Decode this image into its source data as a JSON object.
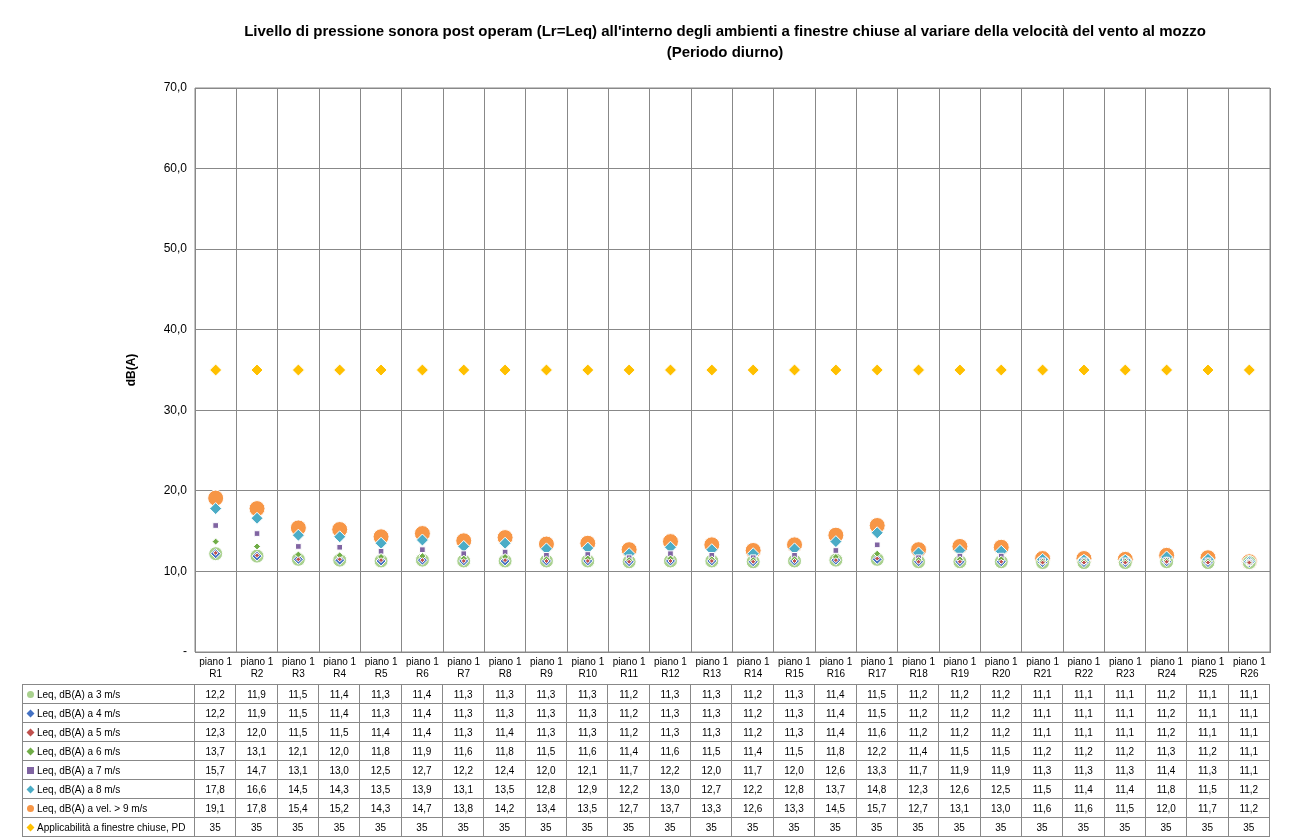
{
  "chart_data": {
    "type": "scatter",
    "title": "Livello di pressione sonora post operam (Lr=Leq) all'interno degli ambienti a finestre chiuse al variare della velocità del vento al mozzo (Periodo diurno)",
    "ylabel": "dB(A)",
    "categories": [
      "piano 1\nR1",
      "piano 1\nR2",
      "piano 1\nR3",
      "piano 1\nR4",
      "piano 1\nR5",
      "piano 1\nR6",
      "piano 1\nR7",
      "piano 1\nR8",
      "piano 1\nR9",
      "piano 1\nR10",
      "piano 1\nR11",
      "piano 1\nR12",
      "piano 1\nR13",
      "piano 1\nR14",
      "piano 1\nR15",
      "piano 1\nR16",
      "piano 1\nR17",
      "piano 1\nR18",
      "piano 1\nR19",
      "piano 1\nR20",
      "piano 1\nR21",
      "piano 1\nR22",
      "piano 1\nR23",
      "piano 1\nR24",
      "piano 1\nR25",
      "piano 1\nR26"
    ],
    "ylim": [
      0,
      70
    ],
    "yticks": [
      {
        "value": 0,
        "label": "-"
      },
      {
        "value": 10,
        "label": "10,0"
      },
      {
        "value": 20,
        "label": "20,0"
      },
      {
        "value": 30,
        "label": "30,0"
      },
      {
        "value": 40,
        "label": "40,0"
      },
      {
        "value": 50,
        "label": "50,0"
      },
      {
        "value": 60,
        "label": "60,0"
      },
      {
        "value": 70,
        "label": "70,0"
      }
    ],
    "grid": true,
    "legend": "bottom",
    "data_labels": true,
    "series": [
      {
        "name": "Leq, dB(A) a 3 m/s",
        "color": "#a9d18e",
        "marker": "circle",
        "values": [
          12.2,
          11.9,
          11.5,
          11.4,
          11.3,
          11.4,
          11.3,
          11.3,
          11.3,
          11.3,
          11.2,
          11.3,
          11.3,
          11.2,
          11.3,
          11.4,
          11.5,
          11.2,
          11.2,
          11.2,
          11.1,
          11.1,
          11.1,
          11.2,
          11.1,
          11.1
        ],
        "value_labels": [
          "12,2",
          "11,9",
          "11,5",
          "11,4",
          "11,3",
          "11,4",
          "11,3",
          "11,3",
          "11,3",
          "11,3",
          "11,2",
          "11,3",
          "11,3",
          "11,2",
          "11,3",
          "11,4",
          "11,5",
          "11,2",
          "11,2",
          "11,2",
          "11,1",
          "11,1",
          "11,1",
          "11,2",
          "11,1",
          "11,1"
        ]
      },
      {
        "name": "Leq, dB(A) a 4 m/s",
        "color": "#4472c4",
        "marker": "diamond",
        "values": [
          12.2,
          11.9,
          11.5,
          11.4,
          11.3,
          11.4,
          11.3,
          11.3,
          11.3,
          11.3,
          11.2,
          11.3,
          11.3,
          11.2,
          11.3,
          11.4,
          11.5,
          11.2,
          11.2,
          11.2,
          11.1,
          11.1,
          11.1,
          11.2,
          11.1,
          11.1
        ],
        "value_labels": [
          "12,2",
          "11,9",
          "11,5",
          "11,4",
          "11,3",
          "11,4",
          "11,3",
          "11,3",
          "11,3",
          "11,3",
          "11,2",
          "11,3",
          "11,3",
          "11,2",
          "11,3",
          "11,4",
          "11,5",
          "11,2",
          "11,2",
          "11,2",
          "11,1",
          "11,1",
          "11,1",
          "11,2",
          "11,1",
          "11,1"
        ]
      },
      {
        "name": "Leq, dB(A) a 5 m/s",
        "color": "#c0504d",
        "marker": "diamond",
        "values": [
          12.3,
          12.0,
          11.5,
          11.5,
          11.4,
          11.4,
          11.3,
          11.4,
          11.3,
          11.3,
          11.2,
          11.3,
          11.3,
          11.2,
          11.3,
          11.4,
          11.6,
          11.2,
          11.2,
          11.2,
          11.1,
          11.1,
          11.1,
          11.2,
          11.1,
          11.1
        ],
        "value_labels": [
          "12,3",
          "12,0",
          "11,5",
          "11,5",
          "11,4",
          "11,4",
          "11,3",
          "11,4",
          "11,3",
          "11,3",
          "11,2",
          "11,3",
          "11,3",
          "11,2",
          "11,3",
          "11,4",
          "11,6",
          "11,2",
          "11,2",
          "11,2",
          "11,1",
          "11,1",
          "11,1",
          "11,2",
          "11,1",
          "11,1"
        ]
      },
      {
        "name": "Leq, dB(A) a 6 m/s",
        "color": "#70ad47",
        "marker": "diamond",
        "values": [
          13.7,
          13.1,
          12.1,
          12.0,
          11.8,
          11.9,
          11.6,
          11.8,
          11.5,
          11.6,
          11.4,
          11.6,
          11.5,
          11.4,
          11.5,
          11.8,
          12.2,
          11.4,
          11.5,
          11.5,
          11.2,
          11.2,
          11.2,
          11.3,
          11.2,
          11.1
        ],
        "value_labels": [
          "13,7",
          "13,1",
          "12,1",
          "12,0",
          "11,8",
          "11,9",
          "11,6",
          "11,8",
          "11,5",
          "11,6",
          "11,4",
          "11,6",
          "11,5",
          "11,4",
          "11,5",
          "11,8",
          "12,2",
          "11,4",
          "11,5",
          "11,5",
          "11,2",
          "11,2",
          "11,2",
          "11,3",
          "11,2",
          "11,1"
        ]
      },
      {
        "name": "Leq, dB(A) a 7 m/s",
        "color": "#8064a2",
        "marker": "square",
        "values": [
          15.7,
          14.7,
          13.1,
          13.0,
          12.5,
          12.7,
          12.2,
          12.4,
          12.0,
          12.1,
          11.7,
          12.2,
          12.0,
          11.7,
          12.0,
          12.6,
          13.3,
          11.7,
          11.9,
          11.9,
          11.3,
          11.3,
          11.3,
          11.4,
          11.3,
          11.1
        ],
        "value_labels": [
          "15,7",
          "14,7",
          "13,1",
          "13,0",
          "12,5",
          "12,7",
          "12,2",
          "12,4",
          "12,0",
          "12,1",
          "11,7",
          "12,2",
          "12,0",
          "11,7",
          "12,0",
          "12,6",
          "13,3",
          "11,7",
          "11,9",
          "11,9",
          "11,3",
          "11,3",
          "11,3",
          "11,4",
          "11,3",
          "11,1"
        ]
      },
      {
        "name": "Leq, dB(A) a 8 m/s",
        "color": "#4bacc6",
        "marker": "diamond",
        "values": [
          17.8,
          16.6,
          14.5,
          14.3,
          13.5,
          13.9,
          13.1,
          13.5,
          12.8,
          12.9,
          12.2,
          13.0,
          12.7,
          12.2,
          12.8,
          13.7,
          14.8,
          12.3,
          12.6,
          12.5,
          11.5,
          11.4,
          11.4,
          11.8,
          11.5,
          11.2
        ],
        "value_labels": [
          "17,8",
          "16,6",
          "14,5",
          "14,3",
          "13,5",
          "13,9",
          "13,1",
          "13,5",
          "12,8",
          "12,9",
          "12,2",
          "13,0",
          "12,7",
          "12,2",
          "12,8",
          "13,7",
          "14,8",
          "12,3",
          "12,6",
          "12,5",
          "11,5",
          "11,4",
          "11,4",
          "11,8",
          "11,5",
          "11,2"
        ]
      },
      {
        "name": "Leq, dB(A) a vel. > 9 m/s",
        "color": "#f79646",
        "marker": "circle",
        "values": [
          19.1,
          17.8,
          15.4,
          15.2,
          14.3,
          14.7,
          13.8,
          14.2,
          13.4,
          13.5,
          12.7,
          13.7,
          13.3,
          12.6,
          13.3,
          14.5,
          15.7,
          12.7,
          13.1,
          13.0,
          11.6,
          11.6,
          11.5,
          12.0,
          11.7,
          11.2
        ],
        "value_labels": [
          "19,1",
          "17,8",
          "15,4",
          "15,2",
          "14,3",
          "14,7",
          "13,8",
          "14,2",
          "13,4",
          "13,5",
          "12,7",
          "13,7",
          "13,3",
          "12,6",
          "13,3",
          "14,5",
          "15,7",
          "12,7",
          "13,1",
          "13,0",
          "11,6",
          "11,6",
          "11,5",
          "12,0",
          "11,7",
          "11,2"
        ]
      },
      {
        "name": "Applicabilità a finestre chiuse, PD",
        "color": "#ffc000",
        "marker": "diamond",
        "values": [
          35,
          35,
          35,
          35,
          35,
          35,
          35,
          35,
          35,
          35,
          35,
          35,
          35,
          35,
          35,
          35,
          35,
          35,
          35,
          35,
          35,
          35,
          35,
          35,
          35,
          35
        ],
        "value_labels": [
          "35",
          "35",
          "35",
          "35",
          "35",
          "35",
          "35",
          "35",
          "35",
          "35",
          "35",
          "35",
          "35",
          "35",
          "35",
          "35",
          "35",
          "35",
          "35",
          "35",
          "35",
          "35",
          "35",
          "35",
          "35",
          "35"
        ]
      }
    ]
  }
}
